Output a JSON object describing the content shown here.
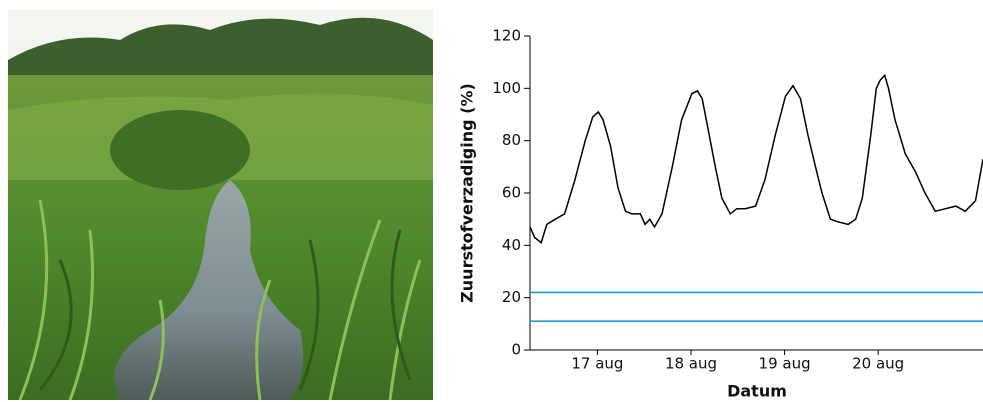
{
  "chart_data": {
    "type": "line",
    "x_label": "Datum",
    "y_label": "Zuurstofverzadiging (%)",
    "xlim": [
      16.78,
      21.62
    ],
    "xticks": [
      {
        "value": 17.5,
        "label": "17 aug"
      },
      {
        "value": 18.5,
        "label": "18 aug"
      },
      {
        "value": 19.5,
        "label": "19 aug"
      },
      {
        "value": 20.5,
        "label": "20 aug"
      }
    ],
    "ylim": [
      0,
      120
    ],
    "yticks": [
      0,
      20,
      40,
      60,
      80,
      100,
      120
    ],
    "series": [
      {
        "color": "#000000",
        "x": [
          16.78,
          16.83,
          16.9,
          16.96,
          17.05,
          17.15,
          17.26,
          17.37,
          17.45,
          17.51,
          17.56,
          17.64,
          17.72,
          17.8,
          17.87,
          17.96,
          18.01,
          18.06,
          18.11,
          18.19,
          18.3,
          18.4,
          18.51,
          18.57,
          18.62,
          18.68,
          18.76,
          18.83,
          18.92,
          18.99,
          19.08,
          19.19,
          19.29,
          19.4,
          19.51,
          19.59,
          19.67,
          19.75,
          19.83,
          19.9,
          19.99,
          20.07,
          20.18,
          20.26,
          20.33,
          20.42,
          20.48,
          20.52,
          20.57,
          20.61,
          20.68,
          20.79,
          20.9,
          21.0,
          21.11,
          21.22,
          21.33,
          21.43,
          21.54,
          21.62
        ],
        "values": [
          47,
          43,
          41,
          48,
          50,
          52,
          65,
          80,
          89,
          91,
          88,
          78,
          62,
          53,
          52,
          52,
          48,
          50,
          47,
          52,
          70,
          88,
          98,
          99,
          96,
          85,
          70,
          58,
          52,
          54,
          54,
          55,
          65,
          82,
          97,
          101,
          96,
          82,
          70,
          60,
          50,
          49,
          48,
          50,
          58,
          82,
          100,
          103,
          105,
          100,
          88,
          75,
          68,
          60,
          53,
          54,
          55,
          53,
          57,
          73
        ]
      }
    ],
    "reference_lines": [
      {
        "value": 22,
        "color": "#1f9bd7"
      },
      {
        "value": 11,
        "color": "#1f9bd7"
      }
    ]
  }
}
